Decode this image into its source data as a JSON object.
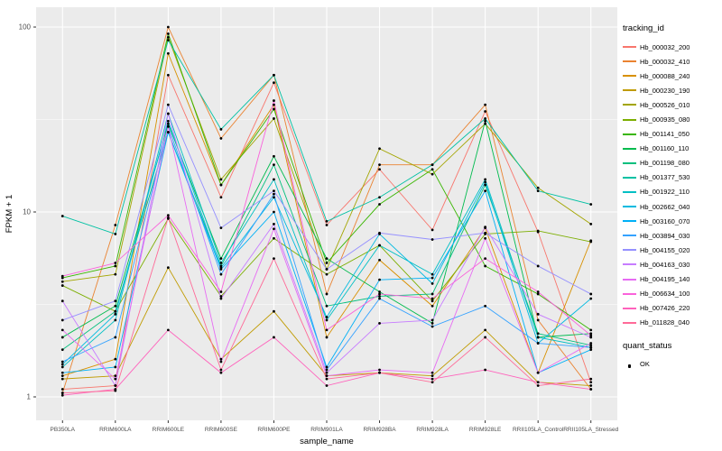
{
  "chart_data": {
    "type": "line",
    "title": "",
    "xlabel": "sample_name",
    "ylabel": "FPKM + 1",
    "y_scale": "log10",
    "ylim": [
      0.9,
      120
    ],
    "y_ticks": [
      1,
      10,
      100
    ],
    "y_minor": [
      3.162,
      31.62
    ],
    "grid": "on",
    "panel_bg": "#EBEBEB",
    "grid_color": "#FFFFFF",
    "point_color": "#000000",
    "legend_position": "right",
    "legend_title": "tracking_id",
    "quant_legend_title": "quant_status",
    "quant_legend_label": "OK",
    "categories": [
      "PB350LA",
      "RRIM600LA",
      "RRIM600LE",
      "RRIM600SE",
      "RRIM600PE",
      "RRIM901LA",
      "RRIM928BA",
      "RRIM928LA",
      "RRIM928LE",
      "RRII105LA_Control",
      "RRII105LA_Stressed"
    ],
    "series": [
      {
        "name": "Hb_000032_200",
        "color": "#F8766D",
        "values": [
          1.1,
          1.15,
          55,
          12,
          50,
          8.5,
          17,
          8,
          35,
          7.8,
          1.2
        ]
      },
      {
        "name": "Hb_000032_410",
        "color": "#EA8331",
        "values": [
          1.05,
          8.5,
          100,
          25,
          55,
          3.6,
          18,
          18,
          38,
          2.6,
          1.1
        ]
      },
      {
        "name": "Hb_000088_240",
        "color": "#D89000",
        "values": [
          1.3,
          1.6,
          72,
          14,
          38,
          2.1,
          5.5,
          3.1,
          8.2,
          1.35,
          7.0
        ]
      },
      {
        "name": "Hb_000230_190",
        "color": "#C09B00",
        "values": [
          1.25,
          1.3,
          5.0,
          1.6,
          2.9,
          1.3,
          1.35,
          1.3,
          2.3,
          1.2,
          1.15
        ]
      },
      {
        "name": "Hb_000526_010",
        "color": "#A3A500",
        "values": [
          4.2,
          4.6,
          88,
          15,
          32,
          4.9,
          22,
          16,
          30,
          13.5,
          8.6
        ]
      },
      {
        "name": "Hb_000935_080",
        "color": "#7CAE00",
        "values": [
          4.0,
          2.9,
          9.2,
          3.5,
          7.2,
          4.6,
          6.6,
          3.3,
          7.6,
          7.9,
          6.9
        ]
      },
      {
        "name": "Hb_001141_050",
        "color": "#39B600",
        "values": [
          4.4,
          5.1,
          92,
          14,
          36,
          5.3,
          11,
          17,
          5.1,
          3.6,
          2.3
        ]
      },
      {
        "name": "Hb_001160_110",
        "color": "#00BB4E",
        "values": [
          2.1,
          3.1,
          30,
          5.6,
          20,
          5.6,
          3.7,
          2.5,
          31,
          2.1,
          2.2
        ]
      },
      {
        "name": "Hb_001198_080",
        "color": "#00BF7D",
        "values": [
          1.8,
          2.9,
          27,
          5.1,
          18,
          3.1,
          3.5,
          3.6,
          14,
          2.2,
          1.9
        ]
      },
      {
        "name": "Hb_001377_530",
        "color": "#00C1A3",
        "values": [
          9.5,
          7.6,
          85,
          28,
          55,
          8.9,
          12,
          18,
          32,
          13,
          11
        ]
      },
      {
        "name": "Hb_001922_110",
        "color": "#00BFC4",
        "values": [
          1.45,
          2.6,
          34,
          5.3,
          15,
          2.6,
          6.6,
          4.6,
          15,
          2.1,
          1.85
        ]
      },
      {
        "name": "Hb_002662_040",
        "color": "#00BAE0",
        "values": [
          1.5,
          2.8,
          31,
          5.0,
          12,
          2.7,
          7.6,
          4.1,
          14.5,
          1.95,
          3.4
        ]
      },
      {
        "name": "Hb_003160_070",
        "color": "#00B0F6",
        "values": [
          1.35,
          1.45,
          27,
          4.9,
          10,
          1.45,
          4.3,
          4.4,
          13,
          1.35,
          1.8
        ]
      },
      {
        "name": "Hb_003894_030",
        "color": "#35A2FF",
        "values": [
          1.55,
          2.1,
          29,
          4.6,
          12.5,
          1.4,
          3.4,
          2.4,
          3.1,
          1.95,
          1.85
        ]
      },
      {
        "name": "Hb_004155_020",
        "color": "#9590FF",
        "values": [
          2.6,
          3.3,
          38,
          8.2,
          13,
          4.9,
          7.7,
          7.1,
          7.7,
          5.1,
          3.6
        ]
      },
      {
        "name": "Hb_004163_030",
        "color": "#C77CFF",
        "values": [
          3.3,
          1.15,
          34,
          3.4,
          8.6,
          1.35,
          2.5,
          2.6,
          8.3,
          2.8,
          2.1
        ]
      },
      {
        "name": "Hb_004195_140",
        "color": "#E76BF3",
        "values": [
          2.3,
          1.25,
          29,
          1.55,
          8.1,
          1.3,
          1.4,
          1.35,
          7.2,
          1.35,
          1.95
        ]
      },
      {
        "name": "Hb_006634_100",
        "color": "#FA62DB",
        "values": [
          4.5,
          5.3,
          9.6,
          3.7,
          40,
          2.3,
          3.6,
          3.4,
          5.6,
          3.7,
          2.15
        ]
      },
      {
        "name": "Hb_007426_220",
        "color": "#FF62BC",
        "values": [
          1.02,
          1.1,
          2.3,
          1.35,
          2.1,
          1.15,
          1.35,
          1.25,
          1.4,
          1.2,
          1.1
        ]
      },
      {
        "name": "Hb_011828_040",
        "color": "#FF6A98",
        "values": [
          1.05,
          1.08,
          9.3,
          1.4,
          5.6,
          1.25,
          1.35,
          1.2,
          2.1,
          1.15,
          1.25
        ]
      }
    ]
  }
}
